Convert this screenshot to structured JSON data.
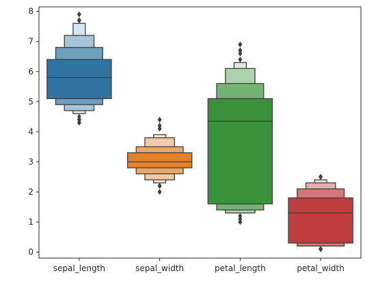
{
  "chart_data": {
    "type": "boxen",
    "title": "",
    "xlabel": "",
    "ylabel": "",
    "ylim": [
      -0.2,
      8.15
    ],
    "yticks": [
      0,
      1,
      2,
      3,
      4,
      5,
      6,
      7,
      8
    ],
    "grid": false,
    "categories": [
      "sepal_length",
      "sepal_width",
      "petal_length",
      "petal_width"
    ],
    "colors": [
      "#3274a1",
      "#e1812c",
      "#3a923a",
      "#c03d3e"
    ],
    "series": [
      {
        "median": 5.8,
        "boxes": [
          [
            5.1,
            6.4
          ],
          [
            4.9,
            6.8
          ],
          [
            4.7,
            7.2
          ],
          [
            4.6,
            7.6
          ]
        ],
        "outliers": [
          4.3,
          4.4,
          4.4,
          4.4,
          4.5,
          7.7,
          7.7,
          7.7,
          7.7,
          7.9
        ]
      },
      {
        "median": 3.0,
        "boxes": [
          [
            2.8,
            3.3
          ],
          [
            2.6,
            3.5
          ],
          [
            2.4,
            3.8
          ],
          [
            2.3,
            3.9
          ]
        ],
        "outliers": [
          2.0,
          2.2,
          2.2,
          4.1,
          4.2,
          4.4
        ]
      },
      {
        "median": 4.35,
        "boxes": [
          [
            1.6,
            5.1
          ],
          [
            1.4,
            5.6
          ],
          [
            1.3,
            6.1
          ],
          [
            1.3,
            6.3
          ]
        ],
        "outliers": [
          1.0,
          1.1,
          1.2,
          6.4,
          6.6,
          6.7,
          6.7,
          6.9
        ]
      },
      {
        "median": 1.3,
        "boxes": [
          [
            0.3,
            1.8
          ],
          [
            0.2,
            2.1
          ],
          [
            0.2,
            2.3
          ],
          [
            0.2,
            2.4
          ]
        ],
        "outliers": [
          0.1,
          0.1,
          0.1,
          0.1,
          0.1,
          2.5,
          2.5,
          2.5
        ]
      }
    ]
  }
}
